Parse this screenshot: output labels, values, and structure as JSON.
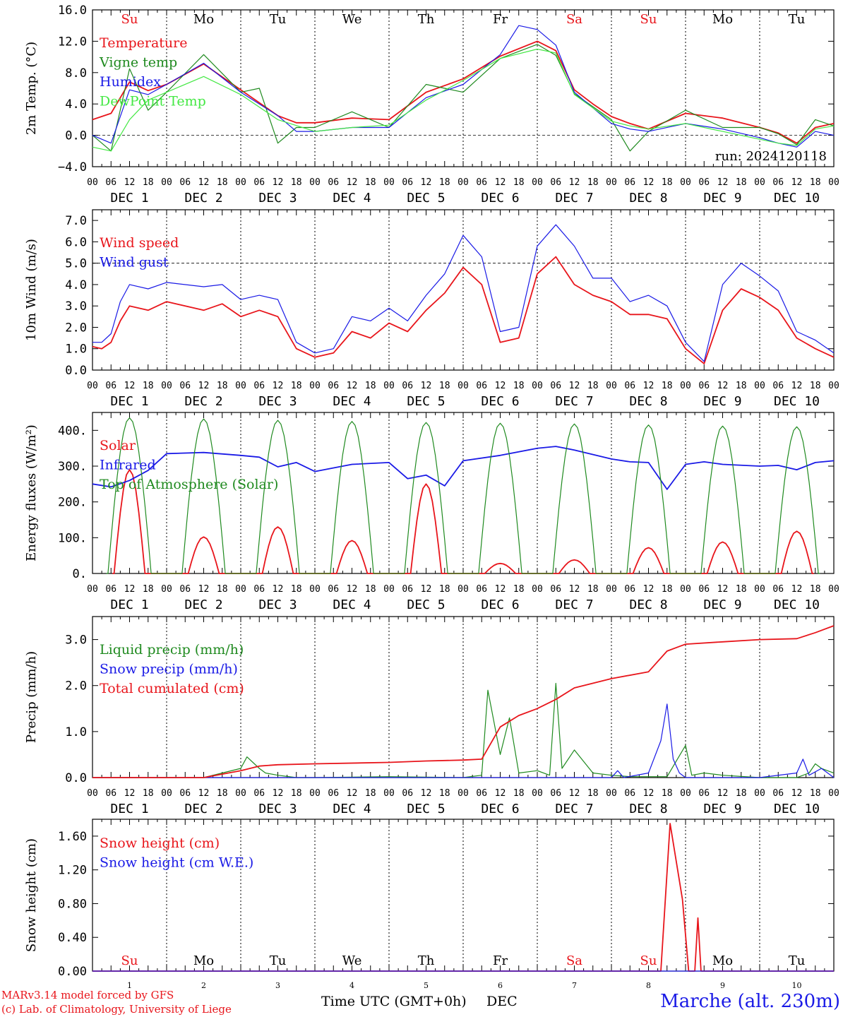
{
  "colors": {
    "red": "#e8151b",
    "green": "#1f8a1f",
    "blue": "#1a1ae6",
    "lightgreen": "#44e844",
    "black": "#000000"
  },
  "footer": {
    "model_line": "MARv3.14 model forced by GFS",
    "lab_line": "(c) Lab. of Climatology, University of Liege",
    "time_axis_label": "Time UTC (GMT+0h)",
    "month_label": "DEC",
    "station": "Marche (alt. 230m)"
  },
  "time_axis": {
    "hour_labels": [
      "00",
      "06",
      "12",
      "18"
    ],
    "final_hour_label": "00",
    "month": "DEC",
    "day_numbers": [
      "1",
      "2",
      "3",
      "4",
      "5",
      "6",
      "7",
      "8",
      "9",
      "10"
    ],
    "bottom_day_numbers": [
      "1",
      "2",
      "3",
      "4",
      "5",
      "6",
      "7",
      "8",
      "9",
      "10"
    ]
  },
  "weekdays": [
    {
      "label": "Su",
      "color": "red"
    },
    {
      "label": "Mo",
      "color": "black"
    },
    {
      "label": "Tu",
      "color": "black"
    },
    {
      "label": "We",
      "color": "black"
    },
    {
      "label": "Th",
      "color": "black"
    },
    {
      "label": "Fr",
      "color": "black"
    },
    {
      "label": "Sa",
      "color": "red"
    },
    {
      "label": "Su",
      "color": "red"
    },
    {
      "label": "Mo",
      "color": "black"
    },
    {
      "label": "Tu",
      "color": "black"
    }
  ],
  "chart_data": [
    {
      "type": "line",
      "id": "temp",
      "ylabel": "2m Temp. (°C)",
      "ylim": [
        -4,
        16
      ],
      "yticks": [
        16,
        12,
        8,
        4,
        0,
        -4
      ],
      "yticklabels": [
        "16.0",
        "12.0",
        "8.0",
        "4.0",
        "0.0",
        "−4.0"
      ],
      "ref_line": 0,
      "x_unit": "hours since DEC 1 00 UTC",
      "annotation": "run: 2024120118",
      "weekday_row": "top",
      "legend_placement": "top-left",
      "series": [
        {
          "name": "Temperature",
          "color": "red",
          "x": [
            0,
            6,
            12,
            18,
            24,
            36,
            48,
            60,
            66,
            72,
            84,
            96,
            108,
            120,
            132,
            144,
            150,
            156,
            162,
            168,
            174,
            180,
            192,
            204,
            216,
            222,
            228,
            234,
            240
          ],
          "y": [
            2.0,
            2.8,
            6.8,
            5.7,
            6.5,
            9.1,
            5.8,
            2.5,
            1.6,
            1.6,
            2.2,
            2.0,
            5.5,
            7.2,
            10.1,
            12.0,
            10.8,
            5.8,
            4.0,
            2.4,
            1.5,
            0.8,
            2.8,
            2.2,
            1.0,
            0.3,
            -1.0,
            1.0,
            1.5
          ]
        },
        {
          "name": "Vigne temp",
          "color": "green",
          "x": [
            0,
            6,
            12,
            18,
            24,
            36,
            48,
            54,
            60,
            66,
            72,
            84,
            96,
            108,
            114,
            120,
            132,
            144,
            150,
            156,
            168,
            174,
            180,
            192,
            204,
            216,
            222,
            228,
            234,
            240
          ],
          "y": [
            0.0,
            -2.0,
            8.5,
            3.2,
            5.5,
            10.3,
            5.5,
            6.0,
            -1.0,
            1.0,
            1.0,
            3.0,
            1.0,
            6.5,
            6.0,
            5.5,
            9.8,
            11.6,
            10.2,
            5.3,
            2.0,
            -2.0,
            0.5,
            3.2,
            1.0,
            1.0,
            0.2,
            -1.2,
            2.0,
            1.2
          ]
        },
        {
          "name": "Humidex",
          "color": "blue",
          "x": [
            0,
            6,
            12,
            18,
            24,
            36,
            48,
            60,
            66,
            72,
            84,
            96,
            108,
            120,
            132,
            138,
            144,
            150,
            156,
            168,
            174,
            180,
            192,
            204,
            216,
            222,
            228,
            234,
            240
          ],
          "y": [
            0.0,
            -1.0,
            5.8,
            5.2,
            6.5,
            9.2,
            5.5,
            2.5,
            0.5,
            0.5,
            1.0,
            1.0,
            4.8,
            6.5,
            10.3,
            14.0,
            13.5,
            11.5,
            5.5,
            1.5,
            0.8,
            0.5,
            1.5,
            0.8,
            -0.3,
            -1.0,
            -1.5,
            0.5,
            0.0
          ]
        },
        {
          "name": "DewPoint Temp",
          "color": "lightgreen",
          "x": [
            0,
            6,
            12,
            18,
            24,
            36,
            48,
            60,
            72,
            84,
            96,
            108,
            120,
            132,
            144,
            150,
            156,
            168,
            174,
            180,
            192,
            204,
            216,
            222,
            228,
            234,
            240
          ],
          "y": [
            -1.5,
            -2.0,
            2.0,
            4.5,
            5.5,
            7.5,
            5.2,
            2.0,
            0.5,
            1.0,
            1.3,
            4.5,
            7.0,
            9.8,
            11.0,
            10.5,
            5.2,
            1.8,
            1.2,
            0.8,
            1.5,
            0.5,
            -0.5,
            -1.0,
            -1.3,
            0.8,
            1.2
          ]
        }
      ]
    },
    {
      "type": "line",
      "id": "wind",
      "ylabel": "10m Wind (m/s)",
      "ylim": [
        0,
        7.5
      ],
      "yticks": [
        7,
        6,
        5,
        4,
        3,
        2,
        1,
        0
      ],
      "yticklabels": [
        "7.0",
        "6.0",
        "5.0",
        "4.0",
        "3.0",
        "2.0",
        "1.0",
        "0.0"
      ],
      "ref_line": 5,
      "x_unit": "hours since DEC 1 00 UTC",
      "legend_placement": "top-left",
      "series": [
        {
          "name": "Wind speed",
          "color": "red",
          "x": [
            0,
            3,
            6,
            9,
            12,
            18,
            24,
            36,
            42,
            48,
            54,
            60,
            66,
            72,
            78,
            84,
            90,
            96,
            102,
            108,
            114,
            120,
            126,
            132,
            138,
            144,
            150,
            156,
            162,
            168,
            174,
            180,
            186,
            192,
            198,
            204,
            210,
            216,
            222,
            228,
            234,
            240
          ],
          "y": [
            1.1,
            1.0,
            1.3,
            2.3,
            3.0,
            2.8,
            3.2,
            2.8,
            3.1,
            2.5,
            2.8,
            2.5,
            1.0,
            0.6,
            0.8,
            1.8,
            1.5,
            2.2,
            1.8,
            2.8,
            3.6,
            4.8,
            4.0,
            1.3,
            1.5,
            4.5,
            5.3,
            4.0,
            3.5,
            3.2,
            2.6,
            2.6,
            2.4,
            1.0,
            0.3,
            2.8,
            3.8,
            3.4,
            2.8,
            1.5,
            1.0,
            0.6
          ]
        },
        {
          "name": "Wind gust",
          "color": "blue",
          "x": [
            0,
            3,
            6,
            9,
            12,
            18,
            24,
            36,
            42,
            48,
            54,
            60,
            66,
            72,
            78,
            84,
            90,
            96,
            102,
            108,
            114,
            120,
            126,
            132,
            138,
            144,
            150,
            156,
            162,
            168,
            174,
            180,
            186,
            192,
            198,
            204,
            210,
            216,
            222,
            228,
            234,
            240
          ],
          "y": [
            1.3,
            1.3,
            1.7,
            3.2,
            4.0,
            3.8,
            4.1,
            3.9,
            4.0,
            3.3,
            3.5,
            3.3,
            1.3,
            0.8,
            1.0,
            2.5,
            2.3,
            2.9,
            2.3,
            3.5,
            4.5,
            6.3,
            5.3,
            1.8,
            2.0,
            5.8,
            6.8,
            5.8,
            4.3,
            4.3,
            3.2,
            3.5,
            3.0,
            1.3,
            0.4,
            4.0,
            5.0,
            4.4,
            3.7,
            1.8,
            1.4,
            0.8
          ]
        }
      ]
    },
    {
      "type": "line",
      "id": "energy",
      "ylabel": "Energy fluxes (W/m²)",
      "ylim": [
        0,
        450
      ],
      "yticks": [
        400,
        300,
        200,
        100,
        0
      ],
      "yticklabels": [
        "400.",
        "300.",
        "200.",
        "100.",
        "0."
      ],
      "x_unit": "hours since DEC 1 00 UTC",
      "legend_placement": "top-left",
      "series": [
        {
          "name": "Solar",
          "color": "red",
          "peak_hour": 12,
          "peaks": [
            290,
            102,
            130,
            92,
            250,
            28,
            38,
            72,
            88,
            118
          ]
        },
        {
          "name": "Infrared",
          "color": "blue",
          "x": [
            0,
            6,
            12,
            18,
            24,
            36,
            48,
            54,
            60,
            66,
            72,
            84,
            96,
            102,
            108,
            114,
            120,
            132,
            144,
            150,
            156,
            168,
            174,
            180,
            186,
            192,
            198,
            204,
            216,
            222,
            228,
            234,
            240
          ],
          "y": [
            250,
            242,
            260,
            288,
            335,
            338,
            330,
            325,
            298,
            310,
            285,
            305,
            310,
            265,
            275,
            245,
            315,
            330,
            350,
            355,
            345,
            320,
            312,
            310,
            235,
            305,
            312,
            305,
            300,
            302,
            290,
            310,
            315
          ]
        },
        {
          "name": "Top of Atmosphere (Solar)",
          "color": "green",
          "peak_hour": 12,
          "peaks": [
            435,
            432,
            428,
            425,
            422,
            420,
            418,
            415,
            412,
            410
          ]
        }
      ]
    },
    {
      "type": "line",
      "id": "precip",
      "ylabel": "Precip (mm/h)",
      "ylim": [
        0,
        3.5
      ],
      "yticks": [
        3,
        2,
        1,
        0
      ],
      "yticklabels": [
        "3.0",
        "2.0",
        "1.0",
        "0.0"
      ],
      "x_unit": "hours since DEC 1 00 UTC",
      "legend_placement": "top-left",
      "series": [
        {
          "name": "Liquid precip (mm/h)",
          "color": "green",
          "x": [
            0,
            36,
            42,
            48,
            50,
            54,
            56,
            60,
            66,
            72,
            96,
            120,
            126,
            128,
            132,
            135,
            138,
            144,
            148,
            150,
            152,
            156,
            162,
            168,
            174,
            186,
            192,
            194,
            198,
            204,
            216,
            228,
            232,
            234,
            236,
            240
          ],
          "y": [
            0,
            0,
            0.1,
            0.2,
            0.45,
            0.2,
            0.1,
            0.05,
            0,
            0,
            0.02,
            0,
            0.05,
            1.9,
            0.5,
            1.3,
            0.1,
            0.15,
            0.05,
            2.05,
            0.2,
            0.6,
            0.1,
            0.05,
            0.02,
            0.02,
            0.7,
            0.05,
            0.1,
            0.05,
            0,
            0,
            0.1,
            0.3,
            0.2,
            0.1
          ]
        },
        {
          "name": "Snow precip (mm/h)",
          "color": "blue",
          "x": [
            0,
            84,
            168,
            170,
            172,
            180,
            184,
            186,
            188,
            190,
            192,
            216,
            228,
            230,
            232,
            236,
            240
          ],
          "y": [
            0,
            0,
            0,
            0.15,
            0,
            0.1,
            0.8,
            1.6,
            0.4,
            0.1,
            0,
            0,
            0.1,
            0.4,
            0.05,
            0.2,
            0
          ]
        },
        {
          "name": "Total cumulated (cm)",
          "color": "red",
          "x": [
            0,
            36,
            48,
            54,
            60,
            72,
            96,
            108,
            120,
            126,
            132,
            138,
            144,
            150,
            156,
            168,
            180,
            186,
            190,
            192,
            204,
            216,
            228,
            234,
            240
          ],
          "y": [
            0,
            0,
            0.15,
            0.25,
            0.28,
            0.3,
            0.33,
            0.36,
            0.38,
            0.4,
            1.1,
            1.35,
            1.5,
            1.7,
            1.95,
            2.15,
            2.3,
            2.75,
            2.85,
            2.9,
            2.95,
            3.0,
            3.02,
            3.15,
            3.3
          ]
        }
      ]
    },
    {
      "type": "line",
      "id": "snow",
      "ylabel": "Snow height (cm)",
      "ylim": [
        0,
        1.8
      ],
      "yticks": [
        1.6,
        1.2,
        0.8,
        0.4,
        0
      ],
      "yticklabels": [
        "1.60",
        "1.20",
        "0.80",
        "0.40",
        "0.00"
      ],
      "x_unit": "hours since DEC 1 00 UTC",
      "weekday_row": "bottom",
      "legend_placement": "top-left",
      "series": [
        {
          "name": "Snow height (cm)",
          "color": "red",
          "x": [
            0,
            184,
            187,
            191,
            193,
            195,
            196,
            197,
            240
          ],
          "y": [
            0,
            0,
            1.75,
            0.85,
            0,
            0,
            0.63,
            0,
            0
          ]
        },
        {
          "name": "Snow height (cm W.E.)",
          "color": "blue",
          "x": [
            0,
            240
          ],
          "y": [
            0,
            0
          ]
        }
      ]
    }
  ]
}
